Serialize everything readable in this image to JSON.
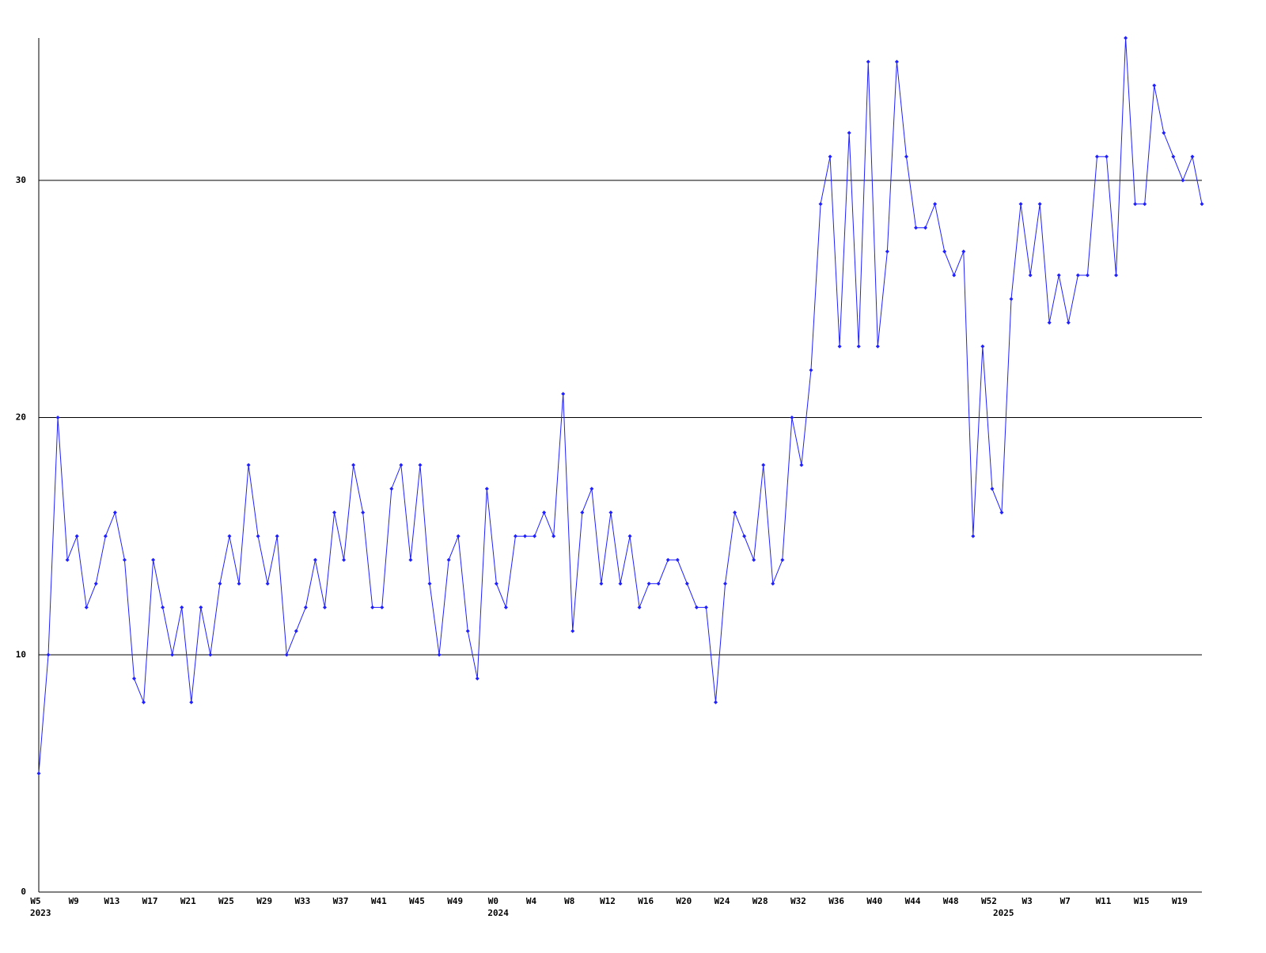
{
  "chart_data": {
    "type": "line",
    "categories": [
      "W5",
      null,
      null,
      null,
      "W9",
      null,
      null,
      null,
      "W13",
      null,
      null,
      null,
      "W17",
      null,
      null,
      null,
      "W21",
      null,
      null,
      null,
      "W25",
      null,
      null,
      null,
      "W29",
      null,
      null,
      null,
      "W33",
      null,
      null,
      null,
      "W37",
      null,
      null,
      null,
      "W41",
      null,
      null,
      null,
      "W45",
      null,
      null,
      null,
      "W49",
      null,
      null,
      null,
      "W0",
      null,
      null,
      null,
      "W4",
      null,
      null,
      null,
      "W8",
      null,
      null,
      null,
      "W12",
      null,
      null,
      null,
      "W16",
      null,
      null,
      null,
      "W20",
      null,
      null,
      null,
      "W24",
      null,
      null,
      null,
      "W28",
      null,
      null,
      null,
      "W32",
      null,
      null,
      null,
      "W36",
      null,
      null,
      null,
      "W40",
      null,
      null,
      null,
      "W44",
      null,
      null,
      null,
      "W48",
      null,
      null,
      null,
      "W52",
      null,
      null,
      null,
      "W3",
      null,
      null,
      null,
      "W7",
      null,
      null,
      null,
      "W11",
      null,
      null,
      null,
      "W15",
      null,
      null,
      null,
      "W19",
      null,
      null
    ],
    "x_group_labels": [
      {
        "at": 0,
        "label": "2023"
      },
      {
        "at": 48,
        "label": "2024"
      },
      {
        "at": 101,
        "label": "2025"
      }
    ],
    "values": [
      5,
      10,
      20,
      14,
      15,
      12,
      13,
      15,
      16,
      14,
      9,
      8,
      14,
      12,
      10,
      12,
      8,
      12,
      10,
      13,
      15,
      13,
      18,
      15,
      13,
      15,
      10,
      11,
      12,
      14,
      12,
      16,
      14,
      18,
      16,
      12,
      12,
      17,
      18,
      14,
      18,
      13,
      10,
      14,
      15,
      11,
      9,
      17,
      13,
      12,
      15,
      15,
      15,
      16,
      15,
      21,
      11,
      16,
      17,
      13,
      16,
      13,
      15,
      12,
      13,
      13,
      14,
      14,
      13,
      12,
      12,
      8,
      13,
      16,
      15,
      14,
      18,
      13,
      14,
      20,
      18,
      22,
      29,
      31,
      23,
      32,
      23,
      35,
      23,
      27,
      35,
      31,
      28,
      28,
      29,
      27,
      26,
      27,
      15,
      23,
      17,
      16,
      25,
      29,
      26,
      29,
      24,
      26,
      24,
      26,
      26,
      31,
      31,
      26,
      36,
      29,
      29,
      34,
      32,
      31,
      30,
      31,
      29
    ],
    "color": "#2020ff",
    "ylim": [
      0,
      36
    ],
    "yticks": [
      0,
      10,
      20,
      30
    ],
    "grid": true
  }
}
